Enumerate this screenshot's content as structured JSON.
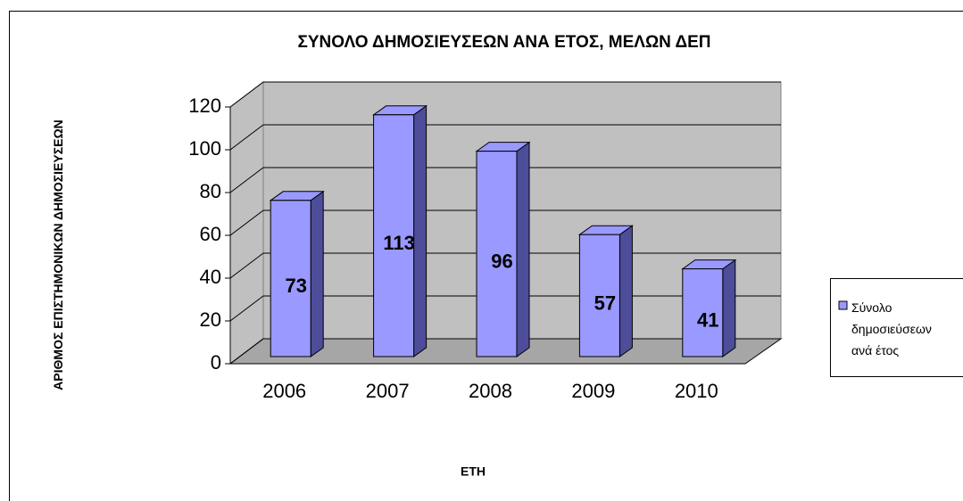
{
  "chart_data": {
    "type": "bar3d",
    "title": "ΣΥΝΟΛΟ ΔΗΜΟΣΙΕΥΣΕΩΝ ΑΝΑ ΕΤΟΣ, ΜΕΛΩΝ ΔΕΠ",
    "x_label": "ΕΤΗ",
    "y_label": "ΑΡΙΘΜΟΣ ΕΠΙΣΤΗΜΟΝΙΚΩΝ ΔΗΜΟΣΙΕΥΣΕΩΝ",
    "categories": [
      "2006",
      "2007",
      "2008",
      "2009",
      "2010"
    ],
    "series": [
      {
        "name": "Σύνολο δημοσιεύσεων ανά έτος",
        "color": "#9999ff",
        "values": [
          73,
          113,
          96,
          57,
          41
        ]
      }
    ],
    "ylim": [
      0,
      120
    ],
    "yticks": [
      0,
      20,
      40,
      60,
      80,
      100,
      120
    ],
    "grid": true,
    "legend": "right"
  }
}
